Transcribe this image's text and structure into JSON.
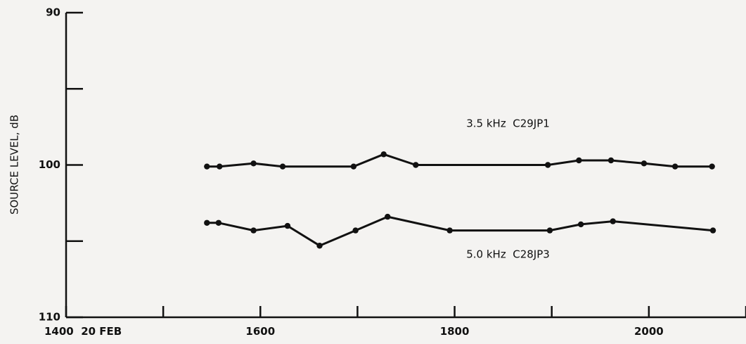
{
  "chart_data": {
    "type": "line",
    "title": "",
    "xlabel": "",
    "ylabel": "SOURCE LEVEL, dB",
    "x_range": [
      1400,
      2100
    ],
    "ylim": [
      90,
      110
    ],
    "y_inverted": true,
    "x_ticks": [
      {
        "value": 1400,
        "label": "1400  20 FEB"
      },
      {
        "value": 1500,
        "label": ""
      },
      {
        "value": 1600,
        "label": "1600"
      },
      {
        "value": 1700,
        "label": ""
      },
      {
        "value": 1800,
        "label": "1800"
      },
      {
        "value": 1900,
        "label": ""
      },
      {
        "value": 2000,
        "label": "2000"
      },
      {
        "value": 2100,
        "label": ""
      }
    ],
    "y_ticks": [
      {
        "value": 90,
        "label": "90"
      },
      {
        "value": 95,
        "label": ""
      },
      {
        "value": 100,
        "label": "100"
      },
      {
        "value": 105,
        "label": ""
      },
      {
        "value": 110,
        "label": "110"
      }
    ],
    "grid": false,
    "series": [
      {
        "name": "3.5 kHz  C29JP1",
        "x": [
          1545,
          1558,
          1593,
          1623,
          1696,
          1727,
          1760,
          1896,
          1928,
          1961,
          1995,
          2027,
          2065
        ],
        "y": [
          100.1,
          100.1,
          99.9,
          100.1,
          100.1,
          99.3,
          100.0,
          100.0,
          99.7,
          99.7,
          99.9,
          100.1,
          100.1
        ]
      },
      {
        "name": "5.0 kHz  C28JP3",
        "x": [
          1545,
          1557,
          1593,
          1628,
          1661,
          1698,
          1731,
          1795,
          1898,
          1930,
          1963,
          2066
        ],
        "y": [
          103.8,
          103.8,
          104.3,
          104.0,
          105.3,
          104.3,
          103.4,
          104.3,
          104.3,
          103.9,
          103.7,
          104.3
        ]
      }
    ],
    "annotations": [
      {
        "text": "3.5 kHz  C29JP1",
        "x": 1855,
        "y": 97.3
      },
      {
        "text": "5.0 kHz  C28JP3",
        "x": 1855,
        "y": 105.9
      }
    ]
  }
}
